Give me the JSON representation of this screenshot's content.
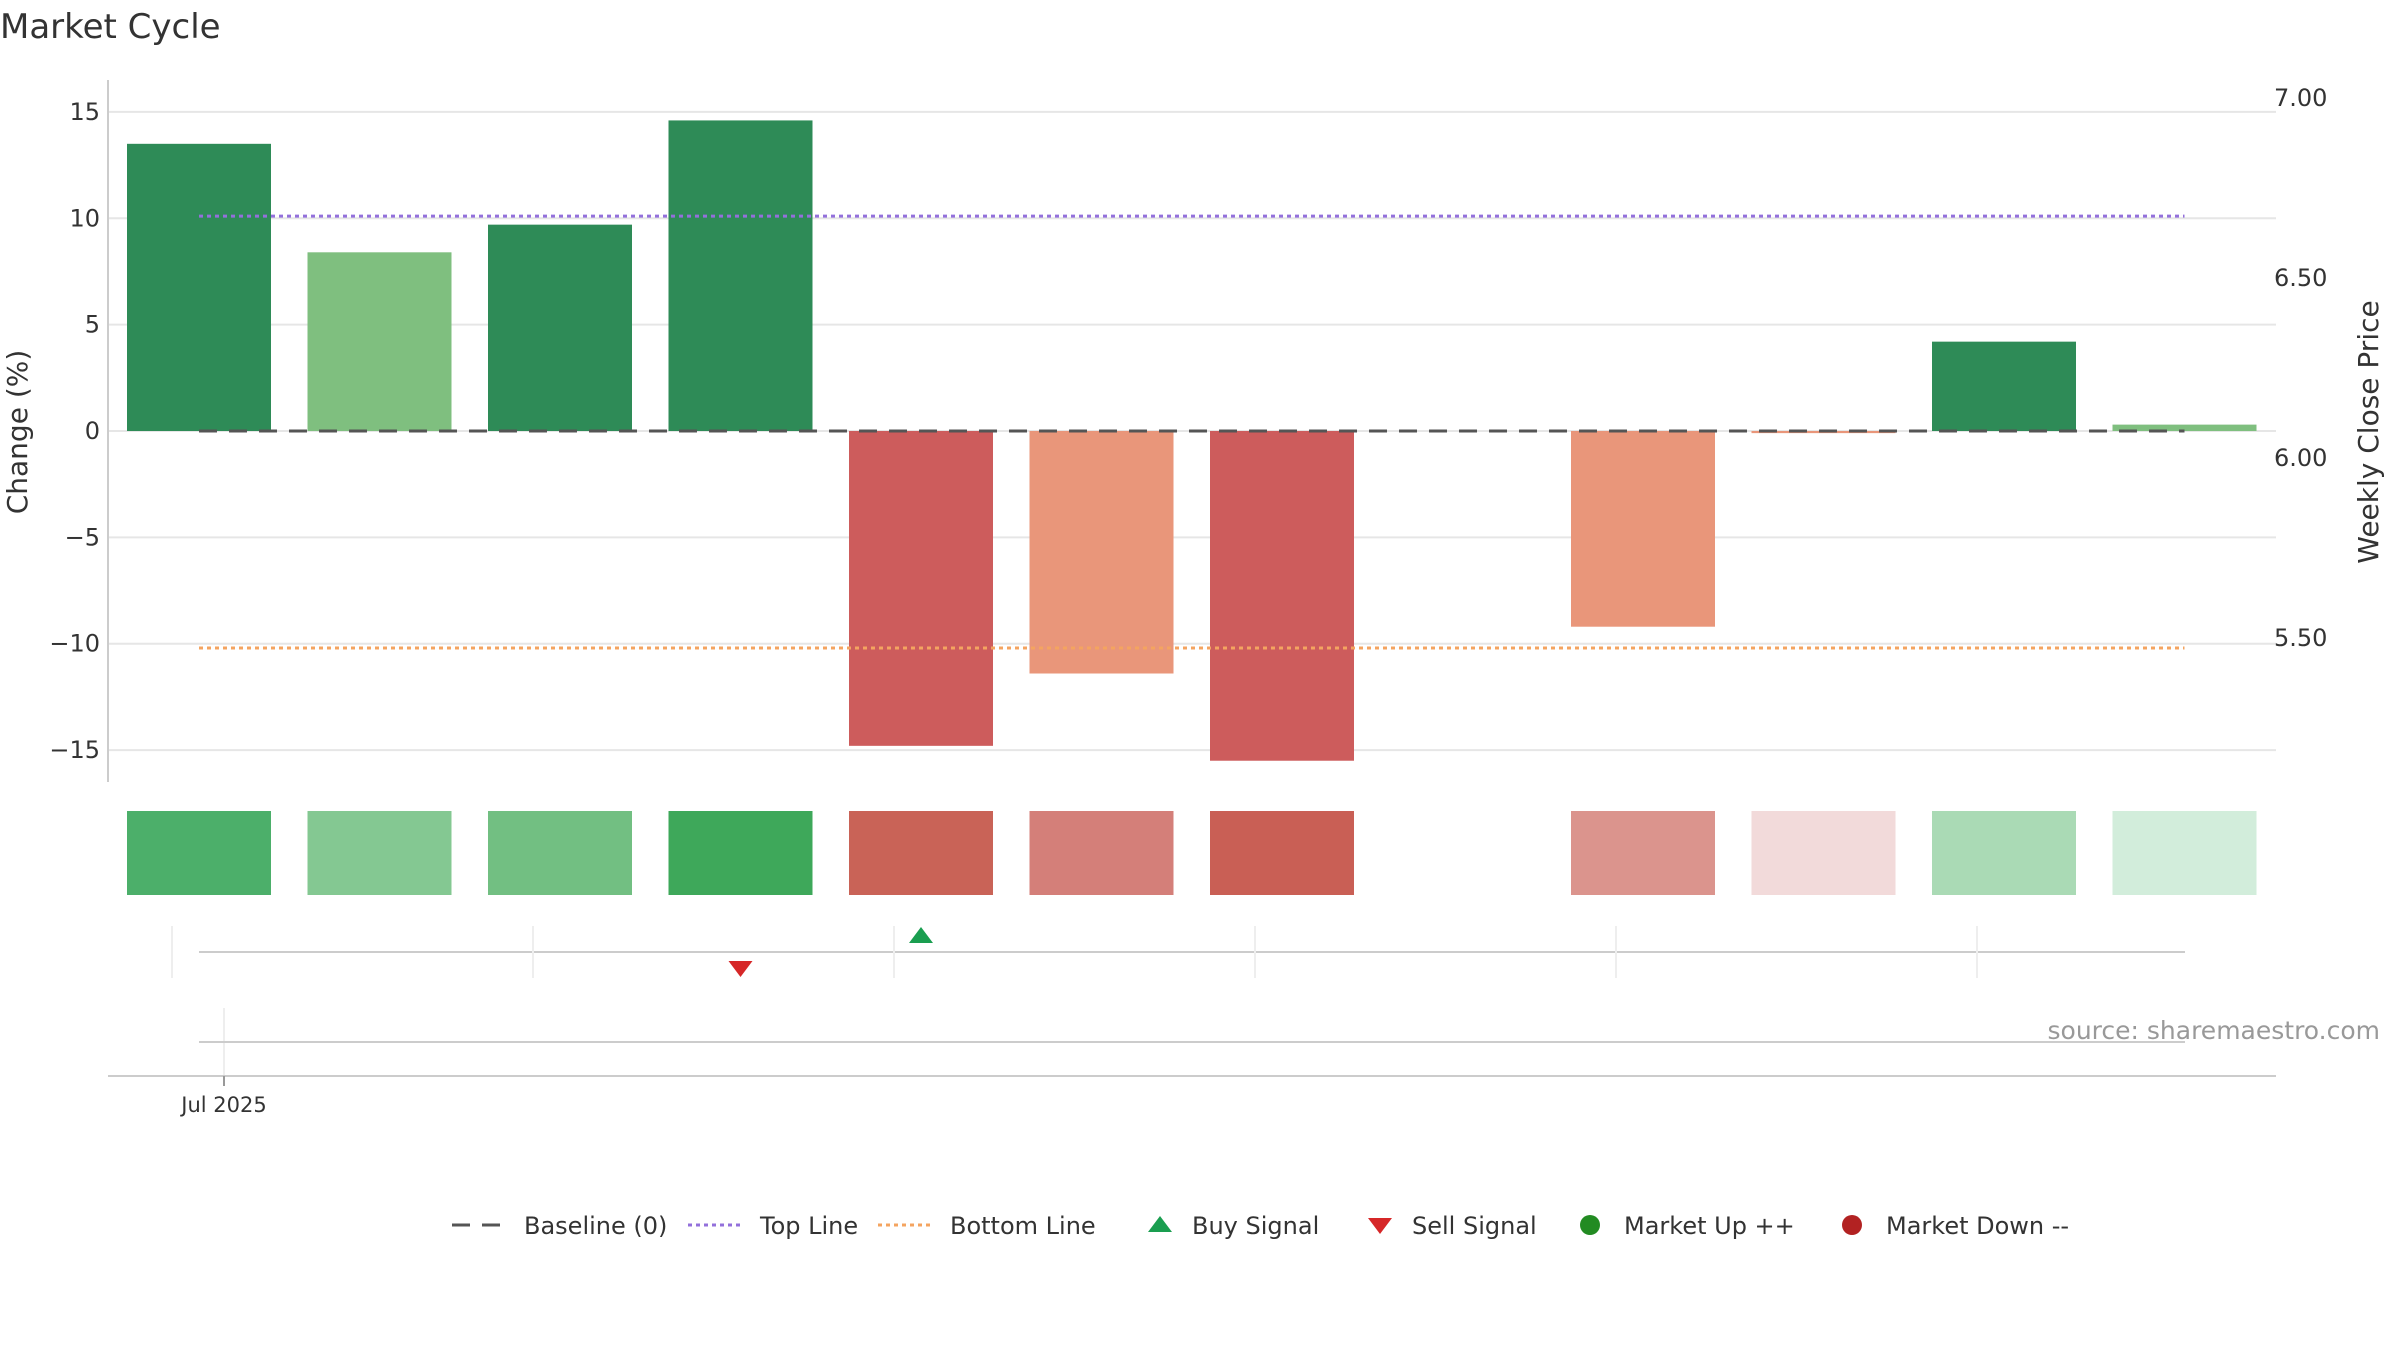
{
  "title": "Market Cycle",
  "source": "source: sharemaestro.com",
  "colors": {
    "strong_up": "#2e8b57",
    "mild_up": "#7fbf7f",
    "strong_down": "#cd5c5c",
    "mild_down": "#e9967a",
    "top_line": "#9370db",
    "bottom_line": "#f4a460",
    "baseline": "#555555",
    "buy": "#1a9e50",
    "sell": "#d62728",
    "market_up": "#228b22",
    "market_down": "#b22222"
  },
  "chart_data": {
    "type": "bar",
    "title": "Market Cycle",
    "ylabel": "Change (%)",
    "y2label": "Weekly Close Price",
    "ylim": [
      -16.5,
      16.5
    ],
    "y2lim": [
      5.1,
      7.05
    ],
    "yticks": [
      "15",
      "10",
      "5",
      "0",
      "−5",
      "−10",
      "−15"
    ],
    "ytick_values": [
      15,
      10,
      5,
      0,
      -5,
      -10,
      -15
    ],
    "y2ticks": [
      "7.00",
      "6.50",
      "6.00",
      "5.50"
    ],
    "y2tick_values": [
      7.0,
      6.5,
      6.0,
      5.5
    ],
    "xtick_label": "Jul 2025",
    "values": [
      13.5,
      8.4,
      9.7,
      14.6,
      -14.8,
      -11.4,
      -15.5,
      0,
      -9.2,
      -0.1,
      4.2,
      0.3
    ],
    "bar_colors": [
      "strong_up",
      "mild_up",
      "strong_up",
      "strong_up",
      "strong_down",
      "mild_down",
      "strong_down",
      "none",
      "mild_down",
      "mild_down",
      "strong_up",
      "mild_up"
    ],
    "top_line": 10.1,
    "bottom_line": -10.2,
    "baseline": 0,
    "heat_strip": [
      "#4caf6a",
      "#84c892",
      "#72bf82",
      "#3ea85a",
      "#c96357",
      "#d47f79",
      "#c95f55",
      null,
      "#db948d",
      "#f2dada",
      "#aadab5",
      "#d2eddb"
    ],
    "buy_signals": [
      4
    ],
    "sell_signals": [
      3
    ],
    "grid": true,
    "legend": {
      "placement": "bottom-center",
      "items": [
        {
          "label": "Baseline (0)",
          "marker": "dashed-line",
          "color": "#555555"
        },
        {
          "label": "Top Line",
          "marker": "dotted-line",
          "color": "#9370db"
        },
        {
          "label": "Bottom Line",
          "marker": "dotted-line",
          "color": "#f4a460"
        },
        {
          "label": "Buy Signal",
          "marker": "triangle-up",
          "color": "#1a9e50"
        },
        {
          "label": "Sell Signal",
          "marker": "triangle-down",
          "color": "#d62728"
        },
        {
          "label": "Market Up ++",
          "marker": "circle",
          "color": "#228b22"
        },
        {
          "label": "Market Down --",
          "marker": "circle",
          "color": "#b22222"
        }
      ]
    }
  }
}
